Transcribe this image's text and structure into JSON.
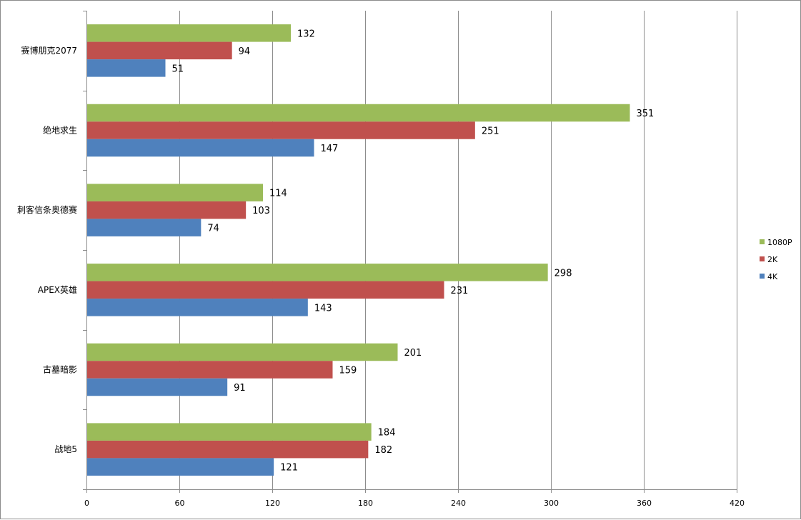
{
  "chart_data": {
    "type": "bar",
    "orientation": "horizontal",
    "title": "",
    "xlabel": "",
    "ylabel": "",
    "xlim": [
      0,
      420
    ],
    "xticks": [
      0,
      60,
      120,
      180,
      240,
      300,
      360,
      420
    ],
    "grid": true,
    "legend_position": "right",
    "categories": [
      "赛博朋克2077",
      "绝地求生",
      "刺客信条奥德赛",
      "APEX英雄",
      "古墓暗影",
      "战地5"
    ],
    "series": [
      {
        "name": "1080P",
        "color": "#9bbb59",
        "values": [
          132,
          351,
          114,
          298,
          201,
          184
        ]
      },
      {
        "name": "2K",
        "color": "#c0504d",
        "values": [
          94,
          251,
          103,
          231,
          159,
          182
        ]
      },
      {
        "name": "4K",
        "color": "#4f81bd",
        "values": [
          51,
          147,
          74,
          143,
          91,
          121
        ]
      }
    ]
  }
}
